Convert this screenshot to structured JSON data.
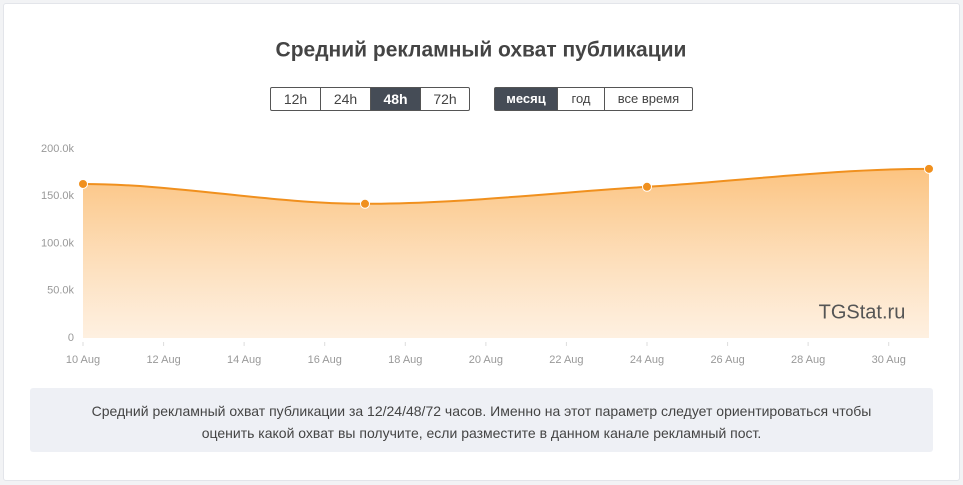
{
  "chart_data": {
    "type": "area",
    "title": "Средний рекламный охват публикации",
    "x": [
      10,
      17,
      24,
      31
    ],
    "values": [
      163,
      142,
      160,
      179
    ],
    "color": "#f0901e",
    "xlim": [
      10,
      31
    ],
    "xticks": [
      {
        "value": 10,
        "label": "10 Aug"
      },
      {
        "value": 12,
        "label": "12 Aug"
      },
      {
        "value": 14,
        "label": "14 Aug"
      },
      {
        "value": 16,
        "label": "16 Aug"
      },
      {
        "value": 18,
        "label": "18 Aug"
      },
      {
        "value": 20,
        "label": "20 Aug"
      },
      {
        "value": 22,
        "label": "22 Aug"
      },
      {
        "value": 24,
        "label": "24 Aug"
      },
      {
        "value": 26,
        "label": "26 Aug"
      },
      {
        "value": 28,
        "label": "28 Aug"
      },
      {
        "value": 30,
        "label": "30 Aug"
      }
    ],
    "ylim": [
      0,
      200
    ],
    "yticks": [
      0,
      {
        "value": 50,
        "label": "50.0k"
      },
      {
        "value": 100,
        "label": "100.0k"
      },
      {
        "value": 150,
        "label": "150.0k"
      },
      {
        "value": 200,
        "label": "200.0k"
      }
    ],
    "grid": false
  },
  "controls": {
    "hours": [
      "12h",
      "24h",
      "48h",
      "72h"
    ],
    "ranges": [
      "месяц",
      "год",
      "все время"
    ]
  },
  "watermark": "TGStat.ru",
  "description": "Средний рекламный охват публикации за 12/24/48/72 часов. Именно на этот параметр следует ориентироваться чтобы оценить какой охват вы получите, если разместите в данном канале рекламный пост."
}
